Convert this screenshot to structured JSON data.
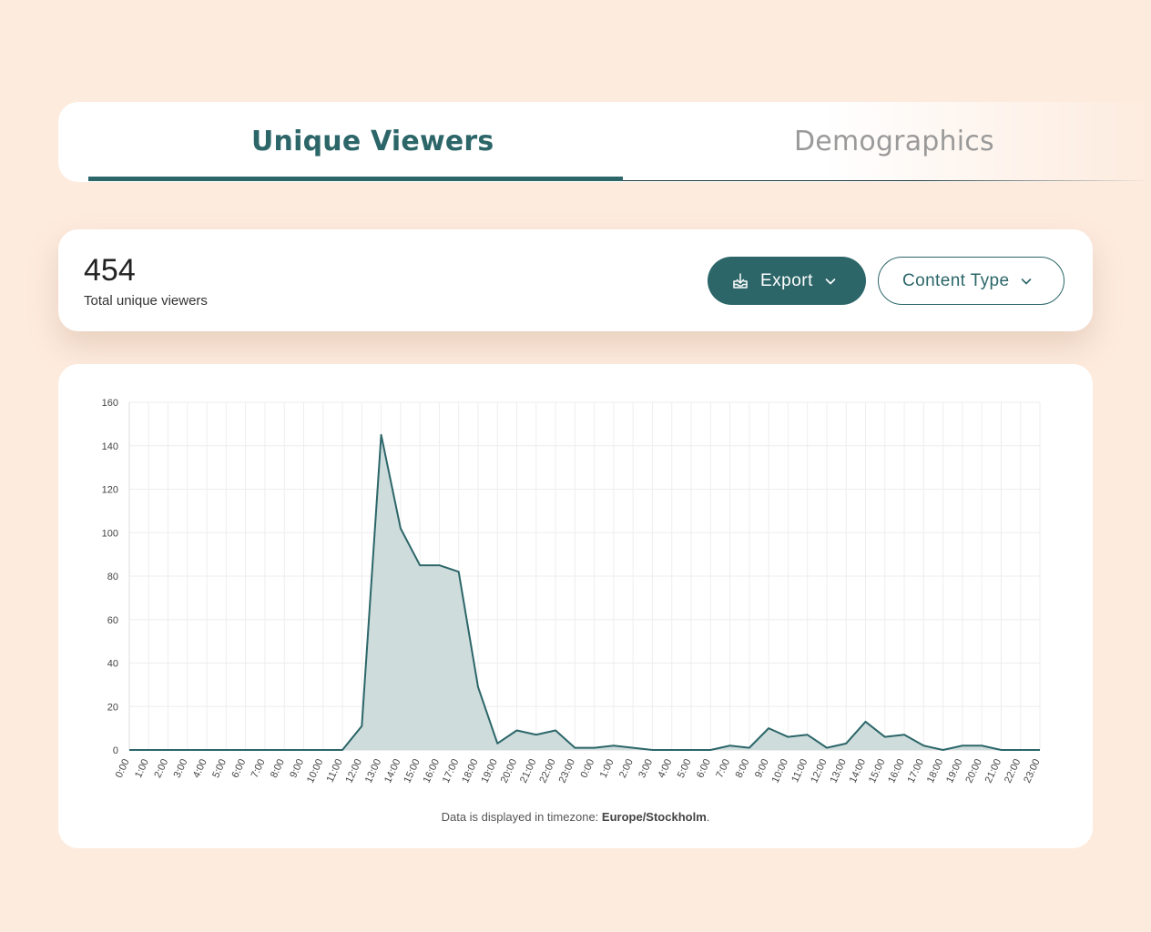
{
  "tabs": [
    {
      "label": "Unique Viewers",
      "active": true
    },
    {
      "label": "Demographics",
      "active": false
    }
  ],
  "summary": {
    "total_value": "454",
    "total_label": "Total unique viewers"
  },
  "buttons": {
    "export_label": "Export",
    "content_type_label": "Content Type"
  },
  "icons": {
    "export": "download-tray-icon",
    "dropdown": "chevron-down-icon"
  },
  "colors": {
    "accent": "#2c6669",
    "area_fill": "#cfdcdc",
    "background": "#fdebde"
  },
  "footnote": {
    "prefix": "Data is displayed in timezone: ",
    "timezone": "Europe/Stockholm",
    "suffix": "."
  },
  "chart_data": {
    "type": "area",
    "x": [
      "0:00",
      "1:00",
      "2:00",
      "3:00",
      "4:00",
      "5:00",
      "6:00",
      "7:00",
      "8:00",
      "9:00",
      "10:00",
      "11:00",
      "12:00",
      "13:00",
      "14:00",
      "15:00",
      "16:00",
      "17:00",
      "18:00",
      "19:00",
      "20:00",
      "21:00",
      "22:00",
      "23:00",
      "0:00",
      "1:00",
      "2:00",
      "3:00",
      "4:00",
      "5:00",
      "6:00",
      "7:00",
      "8:00",
      "9:00",
      "10:00",
      "11:00",
      "12:00",
      "13:00",
      "14:00",
      "15:00",
      "16:00",
      "17:00",
      "18:00",
      "19:00",
      "20:00",
      "21:00",
      "22:00",
      "23:00"
    ],
    "values": [
      0,
      0,
      0,
      0,
      0,
      0,
      0,
      0,
      0,
      0,
      0,
      0,
      11,
      145,
      102,
      85,
      85,
      82,
      29,
      3,
      9,
      7,
      9,
      1,
      1,
      2,
      1,
      0,
      0,
      0,
      0,
      2,
      1,
      10,
      6,
      7,
      1,
      3,
      13,
      6,
      7,
      2,
      0,
      2,
      2,
      0,
      0,
      0
    ],
    "ylim": [
      0,
      160
    ],
    "yticks": [
      0,
      20,
      40,
      60,
      80,
      100,
      120,
      140,
      160
    ],
    "grid": true,
    "legend": "none"
  }
}
